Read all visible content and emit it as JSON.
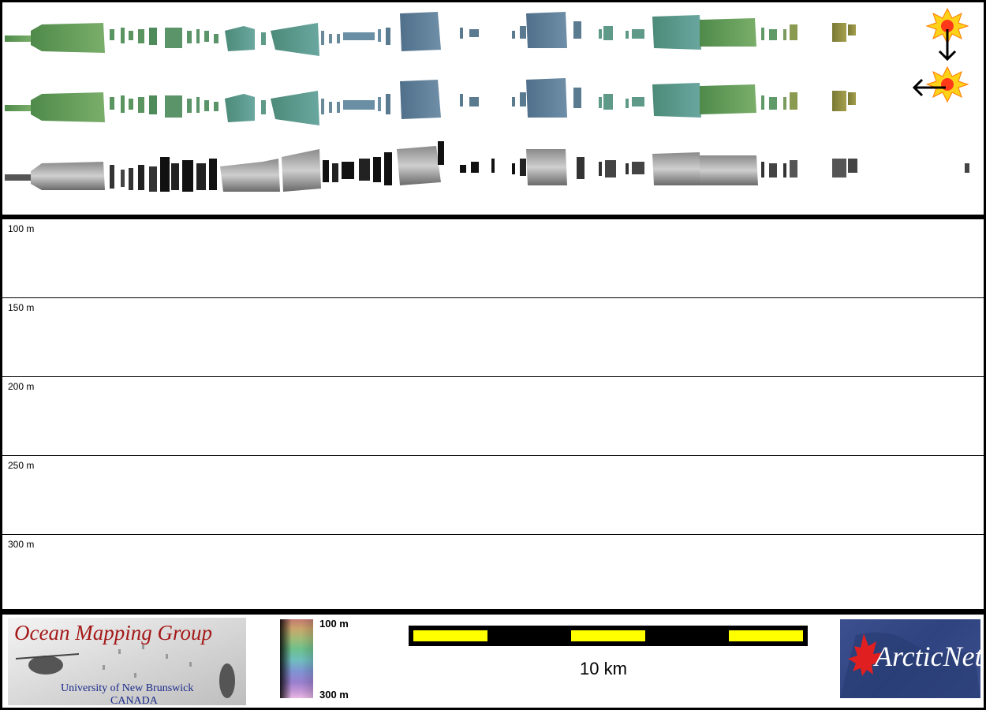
{
  "map": {
    "depth_labels": [
      "100 m",
      "150 m",
      "200 m",
      "250 m",
      "300 m"
    ]
  },
  "legend": {
    "omg": {
      "title": "Ocean Mapping Group",
      "university": "University of New Brunswick",
      "country": "CANADA"
    },
    "colorbar": {
      "top_label": "100 m",
      "bottom_label": "300 m"
    },
    "scale": {
      "label": "10 km",
      "segments": 5
    },
    "arcticnet": {
      "name": "ArcticNet"
    }
  },
  "icons": {
    "sun_top": "sun-illumination-icon",
    "sun_bottom": "sun-illumination-icon",
    "arrow_down": "arrow-down-icon",
    "arrow_left": "arrow-left-icon"
  },
  "colors": {
    "frame": "#000000",
    "scale_fill": "#ffff00",
    "omg_title": "#a41818",
    "omg_text": "#1a2a8a",
    "arcticnet_bg": "#2f4380"
  }
}
